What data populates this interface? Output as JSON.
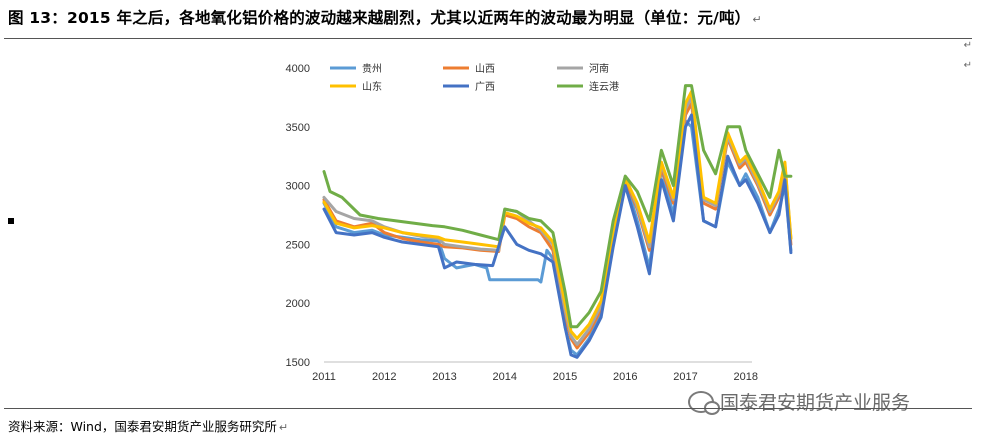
{
  "header": {
    "title": "图 13：2015 年之后，各地氧化铝价格的波动越来越剧烈，尤其以近两年的波动最为明显（单位：元/吨）",
    "return_mark": "↵"
  },
  "footer": {
    "source": "资料来源：Wind，国泰君安期货产业服务研究所",
    "watermark": "国泰君安期货产业服务"
  },
  "chart_data": {
    "type": "line",
    "title": "",
    "xlabel": "",
    "ylabel": "",
    "xlim": [
      2011.0,
      2018.75
    ],
    "ylim": [
      1500,
      4000
    ],
    "yticks": [
      1500,
      2000,
      2500,
      3000,
      3500,
      4000
    ],
    "xticks": [
      "2011",
      "2012",
      "2013",
      "2014",
      "2015",
      "2016",
      "2017",
      "2018"
    ],
    "legend_position": "top",
    "grid": false,
    "series": [
      {
        "name": "贵州",
        "color": "#5b9bd5",
        "x": [
          2011.0,
          2011.2,
          2011.5,
          2011.8,
          2012.0,
          2012.3,
          2012.6,
          2012.9,
          2013.0,
          2013.2,
          2013.5,
          2013.7,
          2013.75,
          2014.0,
          2014.3,
          2014.55,
          2014.6,
          2014.7,
          2014.8,
          2014.9,
          2015.0,
          2015.1,
          2015.2,
          2015.4,
          2015.6,
          2015.8,
          2016.0,
          2016.2,
          2016.4,
          2016.6,
          2016.8,
          2017.0,
          2017.1,
          2017.3,
          2017.5,
          2017.7,
          2017.9,
          2018.0,
          2018.2,
          2018.4,
          2018.55,
          2018.65,
          2018.75
        ],
        "values": [
          2850,
          2650,
          2600,
          2620,
          2580,
          2560,
          2540,
          2530,
          2380,
          2300,
          2330,
          2300,
          2200,
          2200,
          2200,
          2200,
          2180,
          2450,
          2380,
          2250,
          1800,
          1600,
          1560,
          1700,
          1900,
          2500,
          3050,
          2700,
          2300,
          3150,
          2750,
          3550,
          3500,
          2700,
          2650,
          3200,
          3000,
          3100,
          2900,
          2600,
          2800,
          3000,
          2450
        ]
      },
      {
        "name": "山西",
        "color": "#ed7d31",
        "x": [
          2011.0,
          2011.2,
          2011.5,
          2011.8,
          2012.0,
          2012.3,
          2012.6,
          2012.9,
          2013.0,
          2013.3,
          2013.6,
          2013.9,
          2014.0,
          2014.2,
          2014.4,
          2014.6,
          2014.8,
          2015.0,
          2015.1,
          2015.2,
          2015.4,
          2015.6,
          2015.8,
          2016.0,
          2016.2,
          2016.4,
          2016.6,
          2016.8,
          2017.0,
          2017.1,
          2017.3,
          2017.5,
          2017.7,
          2017.9,
          2018.0,
          2018.2,
          2018.4,
          2018.55,
          2018.65,
          2018.75
        ],
        "values": [
          2880,
          2700,
          2650,
          2680,
          2600,
          2550,
          2520,
          2500,
          2480,
          2470,
          2450,
          2440,
          2750,
          2720,
          2650,
          2600,
          2450,
          1900,
          1700,
          1620,
          1750,
          1950,
          2550,
          3050,
          2800,
          2450,
          3150,
          2850,
          3600,
          3700,
          2850,
          2800,
          3400,
          3150,
          3200,
          3000,
          2750,
          2900,
          3150,
          2500
        ]
      },
      {
        "name": "河南",
        "color": "#a5a5a5",
        "x": [
          2011.0,
          2011.2,
          2011.5,
          2011.8,
          2012.0,
          2012.3,
          2012.6,
          2012.9,
          2013.0,
          2013.3,
          2013.6,
          2013.9,
          2014.0,
          2014.2,
          2014.4,
          2014.6,
          2014.8,
          2015.0,
          2015.1,
          2015.2,
          2015.4,
          2015.6,
          2015.8,
          2016.0,
          2016.2,
          2016.4,
          2016.6,
          2016.8,
          2017.0,
          2017.1,
          2017.3,
          2017.5,
          2017.7,
          2017.9,
          2018.0,
          2018.2,
          2018.4,
          2018.55,
          2018.65,
          2018.75
        ],
        "values": [
          2900,
          2780,
          2720,
          2700,
          2650,
          2600,
          2570,
          2550,
          2500,
          2480,
          2460,
          2450,
          2800,
          2780,
          2700,
          2620,
          2500,
          1950,
          1720,
          1650,
          1780,
          1980,
          2580,
          3080,
          2820,
          2480,
          3180,
          2880,
          3650,
          3750,
          2880,
          2830,
          3420,
          3180,
          3230,
          3020,
          2780,
          2930,
          3180,
          2550
        ]
      },
      {
        "name": "山东",
        "color": "#ffc000",
        "x": [
          2011.0,
          2011.2,
          2011.5,
          2011.8,
          2012.0,
          2012.3,
          2012.6,
          2012.9,
          2013.0,
          2013.3,
          2013.6,
          2013.9,
          2014.0,
          2014.2,
          2014.4,
          2014.6,
          2014.8,
          2015.0,
          2015.1,
          2015.2,
          2015.4,
          2015.6,
          2015.8,
          2016.0,
          2016.2,
          2016.4,
          2016.6,
          2016.8,
          2017.0,
          2017.1,
          2017.3,
          2017.5,
          2017.7,
          2017.9,
          2018.0,
          2018.2,
          2018.4,
          2018.55,
          2018.65,
          2018.75
        ],
        "values": [
          2860,
          2680,
          2640,
          2660,
          2640,
          2600,
          2580,
          2560,
          2540,
          2520,
          2500,
          2480,
          2770,
          2740,
          2680,
          2640,
          2520,
          2000,
          1760,
          1700,
          1820,
          2020,
          2620,
          3060,
          2850,
          2520,
          3200,
          2900,
          3700,
          3800,
          2900,
          2850,
          3450,
          3200,
          3250,
          3050,
          2800,
          2950,
          3200,
          2550
        ]
      },
      {
        "name": "广西",
        "color": "#4472c4",
        "x": [
          2011.0,
          2011.2,
          2011.5,
          2011.8,
          2012.0,
          2012.3,
          2012.6,
          2012.9,
          2013.0,
          2013.2,
          2013.5,
          2013.8,
          2014.0,
          2014.2,
          2014.4,
          2014.6,
          2014.8,
          2015.0,
          2015.1,
          2015.2,
          2015.4,
          2015.6,
          2015.8,
          2016.0,
          2016.2,
          2016.4,
          2016.6,
          2016.8,
          2017.0,
          2017.1,
          2017.3,
          2017.5,
          2017.7,
          2017.9,
          2018.0,
          2018.2,
          2018.4,
          2018.55,
          2018.65,
          2018.75
        ],
        "values": [
          2800,
          2600,
          2580,
          2600,
          2560,
          2520,
          2500,
          2480,
          2300,
          2350,
          2330,
          2320,
          2650,
          2500,
          2450,
          2420,
          2350,
          1800,
          1560,
          1540,
          1680,
          1880,
          2480,
          3000,
          2650,
          2250,
          3050,
          2700,
          3500,
          3600,
          2700,
          2650,
          3250,
          3000,
          3050,
          2850,
          2600,
          2750,
          3050,
          2430
        ]
      },
      {
        "name": "连云港",
        "color": "#70ad47",
        "x": [
          2011.0,
          2011.1,
          2011.3,
          2011.6,
          2011.9,
          2012.2,
          2012.5,
          2012.8,
          2013.0,
          2013.3,
          2013.6,
          2013.9,
          2014.0,
          2014.2,
          2014.4,
          2014.6,
          2014.8,
          2015.0,
          2015.1,
          2015.2,
          2015.4,
          2015.6,
          2015.8,
          2016.0,
          2016.2,
          2016.4,
          2016.6,
          2016.8,
          2017.0,
          2017.1,
          2017.3,
          2017.5,
          2017.7,
          2017.9,
          2018.0,
          2018.2,
          2018.4,
          2018.55,
          2018.65,
          2018.75
        ],
        "values": [
          3120,
          2950,
          2900,
          2750,
          2720,
          2700,
          2680,
          2660,
          2650,
          2620,
          2580,
          2540,
          2800,
          2780,
          2720,
          2700,
          2600,
          2100,
          1800,
          1800,
          1920,
          2100,
          2700,
          3080,
          2950,
          2700,
          3300,
          3000,
          3850,
          3850,
          3300,
          3100,
          3500,
          3500,
          3300,
          3100,
          2900,
          3300,
          3080,
          3080
        ]
      }
    ]
  }
}
